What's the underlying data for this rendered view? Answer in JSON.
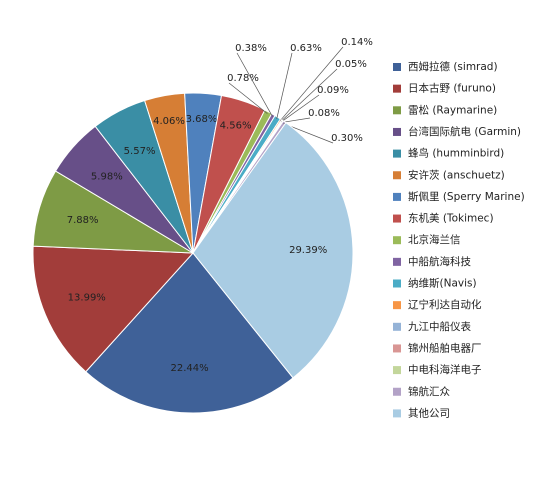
{
  "chart_data": {
    "type": "pie",
    "categories": [
      "西姆拉德 (simrad)",
      "日本古野 (furuno)",
      "雷松 (Raymarine)",
      "台湾国际航电 (Garmin)",
      "蜂鸟 (humminbird)",
      "安许茨 (anschuetz)",
      "斯佩里 (Sperry Marine)",
      "东机美 (Tokimec)",
      "北京海兰信",
      "中船航海科技",
      "纳维斯(Navis)",
      "辽宁利达自动化",
      "九江中船仪表",
      "锦州船舶电器厂",
      "中电科海洋电子",
      "锦航汇众",
      "其他公司"
    ],
    "values": [
      22.44,
      13.99,
      7.88,
      5.98,
      5.57,
      4.06,
      3.68,
      4.56,
      0.78,
      0.38,
      0.63,
      0.14,
      0.05,
      0.09,
      0.08,
      0.3,
      29.39
    ],
    "value_labels": [
      "22.44%",
      "13.99%",
      "7.88%",
      "5.98%",
      "5.57%",
      "4.06%",
      "3.68%",
      "4.56%",
      "0.78%",
      "0.38%",
      "0.63%",
      "0.14%",
      "0.05%",
      "0.09%",
      "0.08%",
      "0.30%",
      "29.39%"
    ],
    "colors": [
      "#3f6198",
      "#a23d3a",
      "#7e9b45",
      "#674f88",
      "#3a8ea5",
      "#d67e35",
      "#4f81bd",
      "#c0504d",
      "#9bbb59",
      "#8064a2",
      "#4bacc6",
      "#f79646",
      "#95b3d7",
      "#d99694",
      "#c3d69b",
      "#b3a2c7",
      "#a9cce3"
    ],
    "legend": "right"
  }
}
